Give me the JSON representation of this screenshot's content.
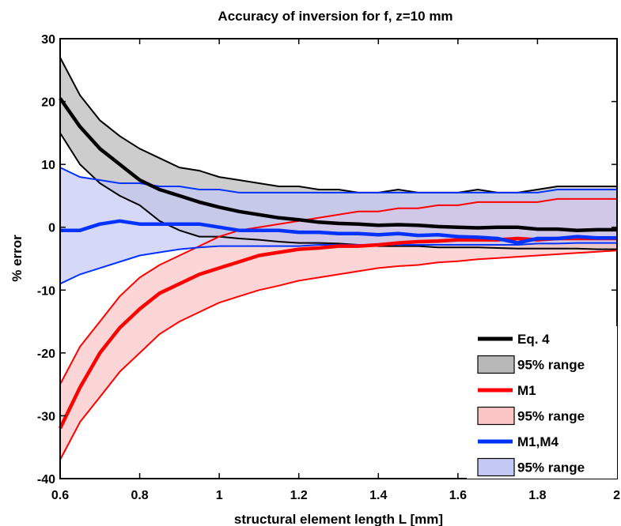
{
  "chart_data": {
    "type": "line",
    "title": "Accuracy of inversion for f, z=10 mm",
    "xlabel": "structural element length L [mm]",
    "ylabel": "% error",
    "xlim": [
      0.6,
      2.0
    ],
    "ylim": [
      -40,
      30
    ],
    "xticks": [
      "0.6",
      "0.8",
      "1",
      "1.2",
      "1.4",
      "1.6",
      "1.8",
      "2"
    ],
    "yticks": [
      "-40",
      "-30",
      "-20",
      "-10",
      "0",
      "10",
      "20",
      "30"
    ],
    "grid": false,
    "legend_position": "bottom-right",
    "x": [
      0.6,
      0.65,
      0.7,
      0.75,
      0.8,
      0.85,
      0.9,
      0.95,
      1.0,
      1.05,
      1.1,
      1.15,
      1.2,
      1.25,
      1.3,
      1.35,
      1.4,
      1.45,
      1.5,
      1.55,
      1.6,
      1.65,
      1.7,
      1.75,
      1.8,
      1.85,
      1.9,
      1.95,
      2.0
    ],
    "series": [
      {
        "name": "Eq. 4",
        "color": "#000000",
        "band_fill": "#b8b8b8",
        "mean": [
          20.5,
          16,
          12.5,
          10,
          7.5,
          6,
          5,
          4,
          3.2,
          2.5,
          2,
          1.5,
          1.2,
          0.8,
          0.6,
          0.5,
          0.3,
          0.4,
          0.3,
          0.1,
          0.0,
          -0.1,
          0.0,
          0.0,
          -0.3,
          -0.3,
          -0.5,
          -0.4,
          -0.4
        ],
        "upper": [
          27,
          21,
          17,
          14.5,
          12.5,
          11,
          9.5,
          9,
          8,
          7.5,
          7,
          6.5,
          6.5,
          6,
          6,
          5.5,
          5.5,
          6,
          5.5,
          5.5,
          5.5,
          6,
          5.5,
          5.5,
          6,
          6.5,
          6.5,
          6.5,
          6.5
        ],
        "lower": [
          15,
          10,
          7,
          5,
          3.5,
          1,
          -0.5,
          -1.5,
          -1.5,
          -1.8,
          -2,
          -2.3,
          -2.5,
          -2.5,
          -2.6,
          -2.8,
          -3,
          -3,
          -3,
          -3.2,
          -3.2,
          -3.2,
          -3.3,
          -3.4,
          -3.4,
          -3.4,
          -3.4,
          -3.5,
          -3.5
        ],
        "band_label": "95% range"
      },
      {
        "name": "M1",
        "color": "#ff0000",
        "band_fill": "#fbc5c5",
        "mean": [
          -32,
          -25.5,
          -20,
          -16,
          -13,
          -10.5,
          -9,
          -7.5,
          -6.5,
          -5.5,
          -4.5,
          -4,
          -3.5,
          -3.3,
          -3,
          -3,
          -2.8,
          -2.5,
          -2.3,
          -2.2,
          -2.0,
          -2.0,
          -2.0,
          -1.8,
          -2.0,
          -1.8,
          -1.8,
          -1.8,
          -1.8
        ],
        "upper": [
          -25,
          -19,
          -15,
          -11,
          -8,
          -6,
          -4.5,
          -3,
          -1.5,
          -0.5,
          0,
          0.5,
          1,
          1.5,
          2,
          2.5,
          2.5,
          3,
          3,
          3.5,
          3.5,
          4,
          4,
          4,
          4,
          4.5,
          4.5,
          4.5,
          4.5
        ],
        "lower": [
          -37,
          -31,
          -27,
          -23,
          -20,
          -17,
          -15,
          -13.5,
          -12,
          -11,
          -10,
          -9.3,
          -8.5,
          -8,
          -7.5,
          -7,
          -6.5,
          -6.2,
          -6,
          -5.6,
          -5.4,
          -5.1,
          -4.9,
          -4.7,
          -4.5,
          -4.3,
          -4.1,
          -3.9,
          -3.7
        ],
        "band_label": "95% range"
      },
      {
        "name": "M1,M4",
        "color": "#0033ff",
        "band_fill": "#c4c8f5",
        "mean": [
          -0.5,
          -0.5,
          0.5,
          1,
          0.5,
          0.5,
          0.5,
          0.5,
          0,
          -0.5,
          -0.5,
          -0.5,
          -0.8,
          -0.8,
          -1,
          -1,
          -1.2,
          -1,
          -1.3,
          -1.2,
          -1.5,
          -1.6,
          -1.8,
          -2.5,
          -1.8,
          -1.8,
          -1.5,
          -1.7,
          -1.7
        ],
        "upper": [
          9.5,
          8,
          7.5,
          7,
          7,
          6.5,
          6.5,
          6,
          6,
          5.5,
          5.5,
          5.5,
          5.5,
          5.5,
          5.5,
          5.5,
          5.5,
          5.5,
          5.5,
          5.5,
          5.5,
          5.5,
          5.5,
          5.5,
          5.5,
          6,
          6,
          6,
          6
        ],
        "lower": [
          -9,
          -7.5,
          -6.5,
          -5.5,
          -4.5,
          -4,
          -3.5,
          -3.2,
          -3,
          -3,
          -3,
          -3,
          -3,
          -2.8,
          -2.8,
          -2.8,
          -2.8,
          -2.8,
          -2.8,
          -2.8,
          -2.8,
          -2.8,
          -2.8,
          -2.8,
          -2.6,
          -2.6,
          -2.5,
          -2.5,
          -2.5
        ],
        "band_label": "95% range"
      }
    ]
  }
}
